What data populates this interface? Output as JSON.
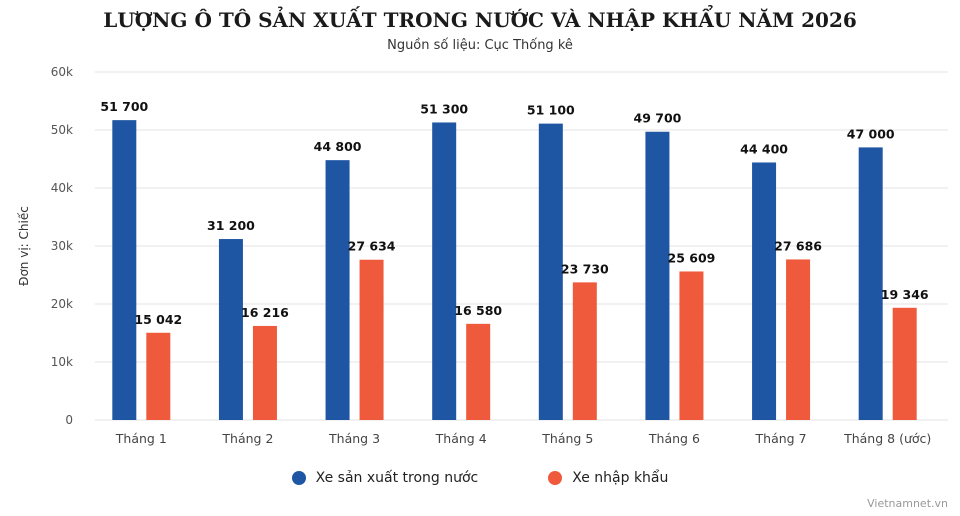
{
  "chart_data": {
    "type": "bar",
    "title": "LƯỢNG Ô TÔ SẢN XUẤT TRONG NƯỚC VÀ NHẬP KHẨU NĂM 2026",
    "subtitle": "Nguồn số liệu: Cục Thống kê",
    "ylabel": "Đơn vị: Chiếc",
    "xlabel": "",
    "ylim": [
      0,
      60000
    ],
    "yticks": [
      0,
      10000,
      20000,
      30000,
      40000,
      50000,
      60000
    ],
    "ytick_labels": [
      "0",
      "10k",
      "20k",
      "30k",
      "40k",
      "50k",
      "60k"
    ],
    "categories": [
      "Tháng 1",
      "Tháng 2",
      "Tháng 3",
      "Tháng 4",
      "Tháng 5",
      "Tháng 6",
      "Tháng 7",
      "Tháng 8 (ước)"
    ],
    "series": [
      {
        "name": "Xe sản xuất trong nước",
        "color": "#1f56a4",
        "values": [
          51700,
          31200,
          44800,
          51300,
          51100,
          49700,
          44400,
          47000
        ],
        "labels": [
          "51 700",
          "31 200",
          "44 800",
          "51 300",
          "51 100",
          "49 700",
          "44 400",
          "47 000"
        ]
      },
      {
        "name": "Xe nhập khẩu",
        "color": "#f05a3c",
        "values": [
          15042,
          16216,
          27634,
          16580,
          23730,
          25609,
          27686,
          19346
        ],
        "labels": [
          "15 042",
          "16 216",
          "27 634",
          "16 580",
          "23 730",
          "25 609",
          "27 686",
          "19 346"
        ]
      }
    ],
    "grid": true,
    "legend": "bottom-center"
  },
  "watermark": "Vietnamnet.vn"
}
